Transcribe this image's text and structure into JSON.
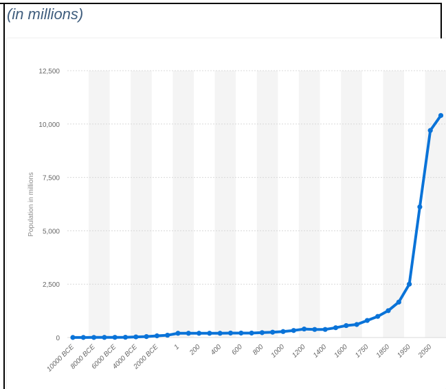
{
  "subtitle": "(in millions)",
  "colors": {
    "line": "#0a73d8",
    "band": "#f4f4f4",
    "grid": "#d8d8d8",
    "text": "#666666"
  },
  "chart_data": {
    "type": "line",
    "title": "",
    "xlabel": "",
    "ylabel": "Population in millions",
    "ylim": [
      0,
      12500
    ],
    "yticks": [
      0,
      2500,
      5000,
      7500,
      10000,
      12500
    ],
    "ytick_labels": [
      "0",
      "2,500",
      "5,000",
      "7,500",
      "10,000",
      "12,500"
    ],
    "grid": true,
    "x_tick_labels": [
      "10000 BCE",
      "8000 BCE",
      "6000 BCE",
      "4000 BCE",
      "2000 BCE",
      "1",
      "200",
      "400",
      "600",
      "800",
      "1000",
      "1200",
      "1400",
      "1600",
      "1750",
      "1850",
      "1950",
      "2050"
    ],
    "series": [
      {
        "name": "",
        "points": [
          [
            "10000 BCE",
            4
          ],
          [
            "9000 BCE",
            4
          ],
          [
            "8000 BCE",
            5
          ],
          [
            "7000 BCE",
            7
          ],
          [
            "6000 BCE",
            10
          ],
          [
            "5000 BCE",
            14
          ],
          [
            "4000 BCE",
            30
          ],
          [
            "3000 BCE",
            45
          ],
          [
            "2000 BCE",
            80
          ],
          [
            "1000 BCE",
            110
          ],
          [
            "1",
            200
          ],
          [
            "100",
            200
          ],
          [
            "200",
            200
          ],
          [
            "300",
            200
          ],
          [
            "400",
            200
          ],
          [
            "500",
            210
          ],
          [
            "600",
            210
          ],
          [
            "700",
            210
          ],
          [
            "800",
            230
          ],
          [
            "900",
            250
          ],
          [
            "1000",
            280
          ],
          [
            "1100",
            330
          ],
          [
            "1200",
            400
          ],
          [
            "1300",
            380
          ],
          [
            "1400",
            380
          ],
          [
            "1500",
            460
          ],
          [
            "1600",
            560
          ],
          [
            "1700",
            610
          ],
          [
            "1750",
            800
          ],
          [
            "1800",
            990
          ],
          [
            "1850",
            1260
          ],
          [
            "1900",
            1660
          ],
          [
            "1950",
            2500
          ],
          [
            "2000",
            6120
          ],
          [
            "2050",
            9700
          ],
          [
            "2100",
            10400
          ]
        ]
      }
    ]
  }
}
